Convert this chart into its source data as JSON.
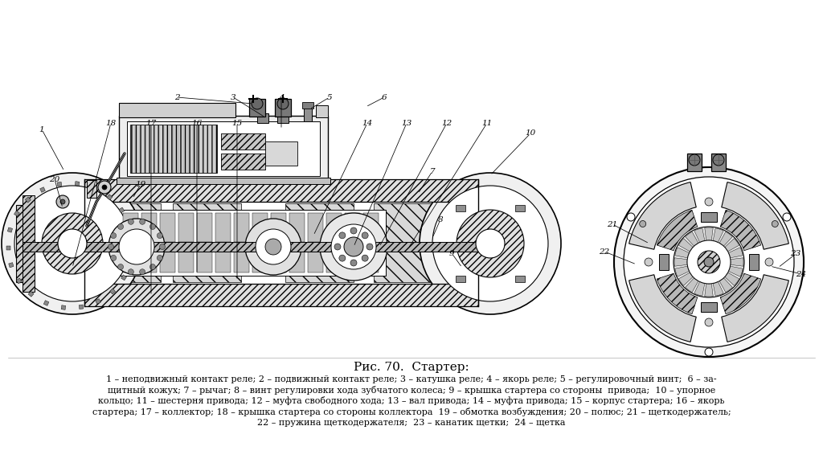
{
  "title": "Рис. 70.  Стартер:",
  "title_fontsize": 11,
  "caption_fontsize": 8.0,
  "caption_lines": [
    "1 – неподвижный контакт реле; 2 – подвижный контакт реле; 3 – катушка реле; 4 – якорь реле; 5 – регулировочный винт;  6 – за-",
    "щитный кожух; 7 – рычаг; 8 – винт регулировки хода зубчатого колеса; 9 – крышка стартера со стороны  привода;  10 – упорное",
    "кольцо; 11 – шестерня привода; 12 – муфта свободного хода; 13 – вал привода; 14 – муфта привода; 15 – корпус стартера; 16 – якорь",
    "стартера; 17 – коллектор; 18 – крышка стартера со стороны коллектора  19 – обмотка возбуждения; 20 – полюс; 21 – щеткодержатель;",
    "22 – пружина щеткодержателя;  23 – канатик щетки;  24 – щетка"
  ],
  "bg_color": "#ffffff",
  "text_color": "#000000",
  "figsize": [
    10.24,
    5.81
  ],
  "dpi": 100
}
